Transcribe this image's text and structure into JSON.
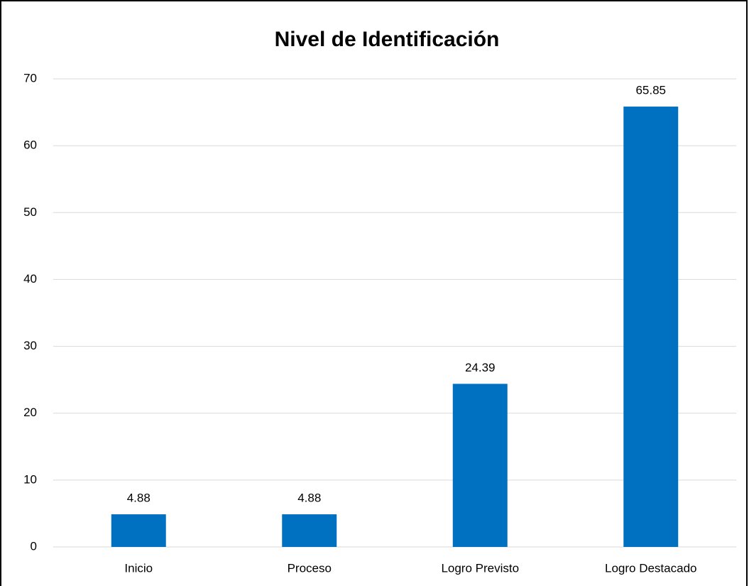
{
  "chart_data": {
    "type": "bar",
    "title": "Nivel de Identificación",
    "categories": [
      "Inicio",
      "Proceso",
      "Logro Previsto",
      "Logro Destacado"
    ],
    "values": [
      4.88,
      4.88,
      24.39,
      65.85
    ],
    "color": "#0070c0",
    "ylim": [
      0,
      70
    ],
    "yticks": [
      0,
      10,
      20,
      30,
      40,
      50,
      60,
      70
    ],
    "grid": true
  }
}
